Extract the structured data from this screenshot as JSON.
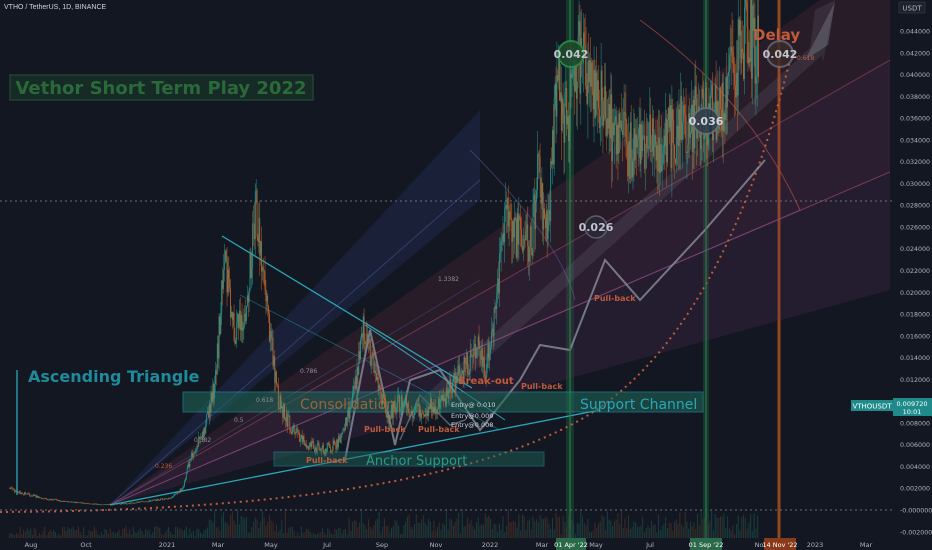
{
  "header": {
    "symbol": "VTHO / TetherUS, 1D, BINANCE"
  },
  "price_scale": {
    "currency": "USDT",
    "ticks": [
      "0.044000",
      "0.042000",
      "0.040000",
      "0.038000",
      "0.036000",
      "0.034000",
      "0.032000",
      "0.030000",
      "0.028000",
      "0.026000",
      "0.024000",
      "0.022000",
      "0.020000",
      "0.018000",
      "0.016000",
      "0.014000",
      "0.012000",
      "0.010000",
      "0.008000",
      "0.006000",
      "0.004000",
      "0.002000",
      "-0.000000",
      "-0.002000"
    ],
    "current_symbol": "VTHOUSDT",
    "current_price": "0.009720",
    "countdown": "10:01"
  },
  "time_axis": {
    "labels": [
      "Aug",
      "Oct",
      "2021",
      "Mar",
      "May",
      "Jul",
      "Sep",
      "Nov",
      "2022",
      "Mar",
      "May",
      "Jul",
      "Nov",
      "2023",
      "Mar"
    ],
    "highlighted": [
      "01 Apr '22",
      "01 Sep '22",
      "14 Nov '22"
    ]
  },
  "annotations": {
    "main_title": "Vethor Short Term Play 2022",
    "ascending_triangle": "Ascending Triangle",
    "consolidation": "Consolidation",
    "support_channel": "Support Channel",
    "anchor_support": "Anchor Support",
    "break_out": "Break-out",
    "pullbacks": [
      "Pull-back",
      "Pull-back",
      "Pull-back",
      "Pull-back",
      "Pull-back"
    ],
    "entries": [
      "Entry@ 0.010",
      "Entry@0.009",
      "Entry@0.008"
    ],
    "delay": "Delay",
    "targets": [
      "0.042",
      "0.042",
      "0.036",
      "0.026"
    ],
    "fib_labels": [
      "0.786",
      "0.618",
      "0.5",
      "0.382",
      "0.236",
      "1.3382",
      "0.618"
    ]
  },
  "chart_data": {
    "type": "candlestick",
    "symbol": "VTHO / TetherUS",
    "interval": "1D",
    "exchange": "BINANCE",
    "ylim": [
      -0.002,
      0.0445
    ],
    "x_range": [
      "2020-07-15",
      "2023-04-15"
    ],
    "current_price": 0.00972,
    "price_path": [
      [
        "2020-07-20",
        0.002
      ],
      [
        "2020-08-01",
        0.0016
      ],
      [
        "2020-09-01",
        0.001
      ],
      [
        "2020-10-01",
        0.0007
      ],
      [
        "2020-11-01",
        0.0005
      ],
      [
        "2020-12-01",
        0.0006
      ],
      [
        "2021-01-01",
        0.0009
      ],
      [
        "2021-01-20",
        0.0012
      ],
      [
        "2021-02-01",
        0.002
      ],
      [
        "2021-02-10",
        0.005
      ],
      [
        "2021-02-25",
        0.007
      ],
      [
        "2021-03-10",
        0.012
      ],
      [
        "2021-03-20",
        0.023
      ],
      [
        "2021-04-01",
        0.016
      ],
      [
        "2021-04-15",
        0.019
      ],
      [
        "2021-04-25",
        0.028
      ],
      [
        "2021-05-05",
        0.02
      ],
      [
        "2021-05-20",
        0.01
      ],
      [
        "2021-06-01",
        0.008
      ],
      [
        "2021-06-20",
        0.006
      ],
      [
        "2021-07-10",
        0.0055
      ],
      [
        "2021-07-25",
        0.006
      ],
      [
        "2021-08-10",
        0.009
      ],
      [
        "2021-08-25",
        0.017
      ],
      [
        "2021-09-07",
        0.012
      ],
      [
        "2021-09-20",
        0.0085
      ],
      [
        "2021-10-05",
        0.01
      ],
      [
        "2021-10-20",
        0.009
      ],
      [
        "2021-11-05",
        0.0095
      ],
      [
        "2021-11-20",
        0.0098
      ],
      [
        "2022-01-01",
        0.015
      ],
      [
        "2022-01-10",
        0.013
      ],
      [
        "2022-01-20",
        0.018
      ],
      [
        "2022-02-01",
        0.028
      ],
      [
        "2022-02-15",
        0.025
      ],
      [
        "2022-03-01",
        0.024
      ],
      [
        "2022-03-10",
        0.031
      ],
      [
        "2022-03-20",
        0.025
      ],
      [
        "2022-04-01",
        0.04
      ],
      [
        "2022-04-10",
        0.036
      ],
      [
        "2022-04-25",
        0.042
      ],
      [
        "2022-05-05",
        0.04
      ],
      [
        "2022-05-20",
        0.038
      ],
      [
        "2022-06-05",
        0.034
      ],
      [
        "2022-07-01",
        0.033
      ],
      [
        "2022-08-01",
        0.034
      ],
      [
        "2022-09-01",
        0.036
      ],
      [
        "2022-10-01",
        0.037
      ],
      [
        "2022-11-01",
        0.044
      ],
      [
        "2022-11-14",
        0.042
      ]
    ],
    "levels": [
      {
        "name": "Support Channel",
        "from": 0.0088,
        "to": 0.0108
      },
      {
        "name": "Anchor Support",
        "from": 0.0053,
        "to": 0.0066
      }
    ],
    "targets": [
      0.042,
      0.042,
      0.036,
      0.026
    ],
    "entries": [
      0.01,
      0.009,
      0.008
    ],
    "markers": [
      "01 Apr '22",
      "01 Sep '22",
      "14 Nov '22"
    ]
  }
}
